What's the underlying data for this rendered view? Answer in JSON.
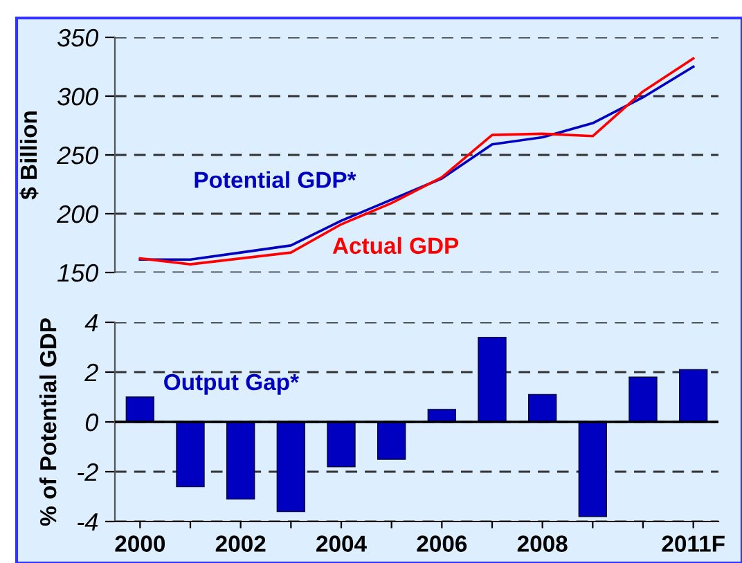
{
  "chart_data": [
    {
      "type": "line",
      "categories": [
        null,
        null,
        null,
        null,
        null,
        null,
        null,
        null,
        null,
        null,
        null,
        null
      ],
      "ylabel": "$ Billion",
      "ylim": [
        150,
        350
      ],
      "yticks": [
        150,
        200,
        250,
        300,
        350
      ],
      "grid": "y",
      "tick_labels": "y",
      "legend": false,
      "marker": "none",
      "line_style": "solid",
      "series": [
        {
          "name": "Potential GDP*",
          "color": "#0000c0",
          "values": [
            161,
            161,
            167,
            173,
            194,
            212,
            230,
            259,
            265,
            277,
            299,
            325
          ]
        },
        {
          "name": "Actual GDP",
          "color": "#ff0000",
          "values": [
            162,
            157,
            162,
            167,
            191,
            209,
            231,
            267,
            268,
            266,
            304,
            332
          ]
        }
      ]
    },
    {
      "type": "bar",
      "categories": [
        "2000",
        null,
        "2002",
        null,
        "2004",
        null,
        "2006",
        null,
        "2008",
        null,
        null,
        "2011F"
      ],
      "ylabel": "% of Potential GDP",
      "ylim": [
        -4,
        4
      ],
      "yticks": [
        -4,
        -2,
        0,
        2,
        4
      ],
      "grid": "y",
      "legend": false,
      "series": [
        {
          "name": "Output Gap*",
          "color": "#0000c0",
          "values": [
            1.0,
            -2.6,
            -3.1,
            -3.6,
            -1.8,
            -1.5,
            0.5,
            3.4,
            1.1,
            -3.8,
            1.8,
            2.1
          ]
        }
      ]
    }
  ]
}
